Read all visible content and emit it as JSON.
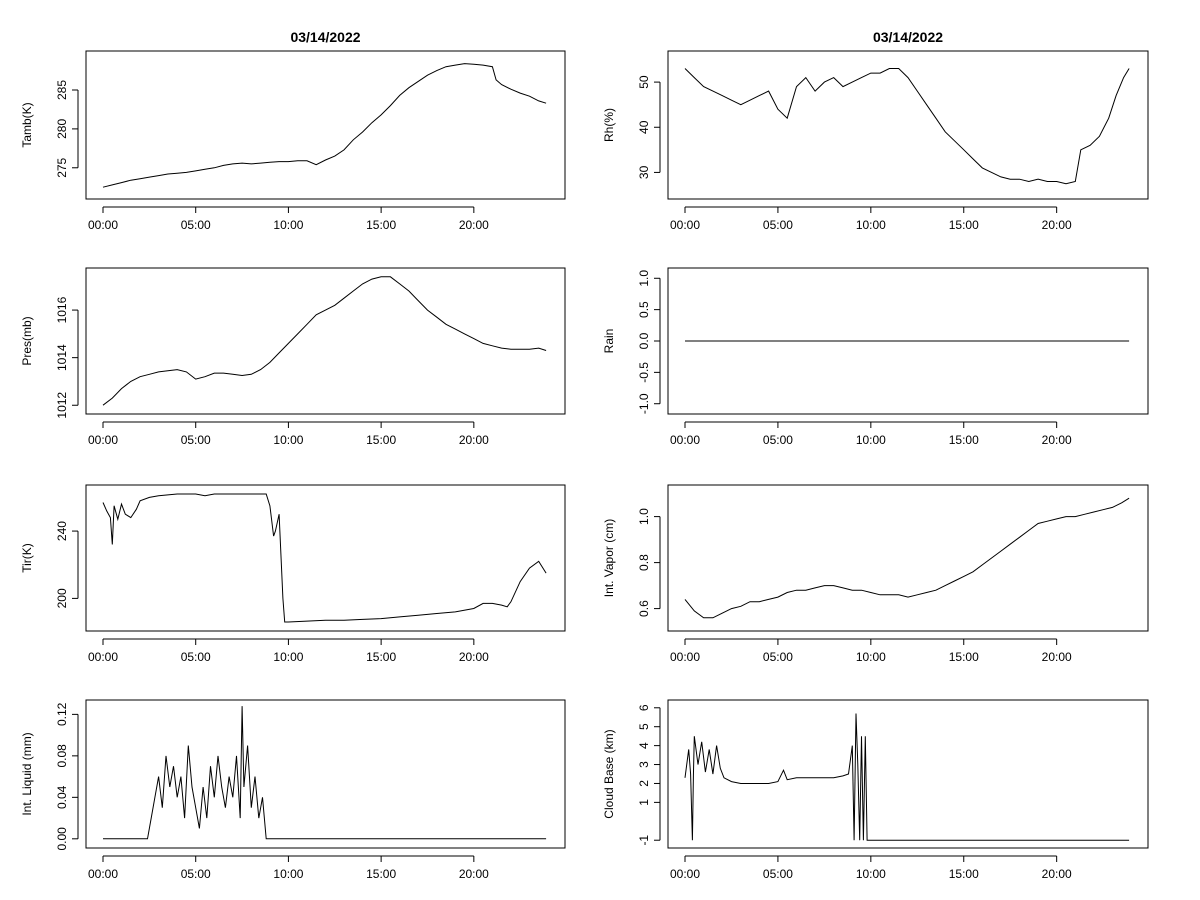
{
  "chart_data": [
    {
      "type": "line",
      "title": "03/14/2022",
      "xlabel": "",
      "ylabel": "Tamb(K)",
      "xlim": [
        0,
        24
      ],
      "ylim": [
        271.5,
        289.5
      ],
      "x_ticks": [
        "00:00",
        "05:00",
        "10:00",
        "15:00",
        "20:00"
      ],
      "y_ticks": [
        "275",
        "280",
        "285"
      ],
      "series": [
        {
          "x": [
            0,
            0.5,
            1,
            1.5,
            2,
            2.5,
            3,
            3.5,
            4,
            4.5,
            5,
            5.5,
            6,
            6.5,
            7,
            7.5,
            8,
            8.5,
            9,
            9.5,
            10,
            10.5,
            11,
            11.5,
            12,
            12.5,
            13,
            13.5,
            14,
            14.5,
            15,
            15.5,
            16,
            16.5,
            17,
            17.5,
            18,
            18.5,
            19,
            19.5,
            20,
            20.5,
            21,
            21.2,
            21.5,
            22,
            22.5,
            23,
            23.5,
            23.9
          ],
          "values": [
            272.5,
            272.8,
            273.1,
            273.4,
            273.6,
            273.8,
            274.0,
            274.2,
            274.3,
            274.4,
            274.6,
            274.8,
            275.0,
            275.3,
            275.5,
            275.6,
            275.5,
            275.6,
            275.7,
            275.8,
            275.8,
            275.9,
            275.9,
            275.4,
            276.0,
            276.5,
            277.3,
            278.6,
            279.6,
            280.8,
            281.8,
            283.0,
            284.3,
            285.3,
            286.1,
            286.9,
            287.5,
            288.0,
            288.2,
            288.4,
            288.3,
            288.2,
            288.0,
            286.3,
            285.7,
            285.1,
            284.6,
            284.2,
            283.6,
            283.3
          ]
        }
      ]
    },
    {
      "type": "line",
      "title": "03/14/2022",
      "xlabel": "",
      "ylabel": "Rh(%)",
      "xlim": [
        0,
        24
      ],
      "ylim": [
        25,
        56
      ],
      "x_ticks": [
        "00:00",
        "05:00",
        "10:00",
        "15:00",
        "20:00"
      ],
      "y_ticks": [
        "30",
        "40",
        "50"
      ],
      "series": [
        {
          "x": [
            0,
            0.5,
            1,
            1.5,
            2,
            2.5,
            3,
            3.5,
            4,
            4.5,
            5,
            5.5,
            6,
            6.5,
            7,
            7.5,
            8,
            8.5,
            9,
            9.5,
            10,
            10.5,
            11,
            11.5,
            12,
            12.5,
            13,
            13.5,
            14,
            14.5,
            15,
            15.5,
            16,
            16.5,
            17,
            17.5,
            18,
            18.5,
            19,
            19.5,
            20,
            20.5,
            21,
            21.3,
            21.8,
            22.3,
            22.8,
            23.2,
            23.6,
            23.9
          ],
          "values": [
            53,
            51,
            49,
            48,
            47,
            46,
            45,
            46,
            47,
            48,
            44,
            42,
            49,
            51,
            48,
            50,
            51,
            49,
            50,
            51,
            52,
            52,
            53,
            53,
            51,
            48,
            45,
            42,
            39,
            37,
            35,
            33,
            31,
            30,
            29,
            28.5,
            28.5,
            28,
            28.5,
            28,
            28,
            27.5,
            28,
            35,
            36,
            38,
            42,
            47,
            51,
            53
          ]
        }
      ]
    },
    {
      "type": "line",
      "title": "",
      "xlabel": "",
      "ylabel": "Pres(mb)",
      "xlim": [
        0,
        24
      ],
      "ylim": [
        1011.8,
        1017.6
      ],
      "x_ticks": [
        "00:00",
        "05:00",
        "10:00",
        "15:00",
        "20:00"
      ],
      "y_ticks": [
        "1012",
        "1014",
        "1016"
      ],
      "series": [
        {
          "x": [
            0,
            0.5,
            1,
            1.5,
            2,
            2.5,
            3,
            3.5,
            4,
            4.5,
            5,
            5.5,
            6,
            6.5,
            7,
            7.5,
            8,
            8.5,
            9,
            9.5,
            10,
            10.5,
            11,
            11.5,
            12,
            12.5,
            13,
            13.5,
            14,
            14.5,
            15,
            15.5,
            16,
            16.5,
            17,
            17.5,
            18,
            18.5,
            19,
            19.5,
            20,
            20.5,
            21,
            21.5,
            22,
            22.5,
            23,
            23.5,
            23.9
          ],
          "values": [
            1012.0,
            1012.3,
            1012.7,
            1013.0,
            1013.2,
            1013.3,
            1013.4,
            1013.45,
            1013.5,
            1013.4,
            1013.1,
            1013.2,
            1013.35,
            1013.35,
            1013.3,
            1013.25,
            1013.3,
            1013.5,
            1013.8,
            1014.2,
            1014.6,
            1015.0,
            1015.4,
            1015.8,
            1016.0,
            1016.2,
            1016.5,
            1016.8,
            1017.1,
            1017.3,
            1017.4,
            1017.4,
            1017.1,
            1016.8,
            1016.4,
            1016.0,
            1015.7,
            1015.4,
            1015.2,
            1015.0,
            1014.8,
            1014.6,
            1014.5,
            1014.4,
            1014.35,
            1014.35,
            1014.35,
            1014.4,
            1014.3
          ]
        }
      ]
    },
    {
      "type": "line",
      "title": "",
      "xlabel": "",
      "ylabel": "Rain",
      "xlim": [
        0,
        24
      ],
      "ylim": [
        -1.1,
        1.1
      ],
      "x_ticks": [
        "00:00",
        "05:00",
        "10:00",
        "15:00",
        "20:00"
      ],
      "y_ticks": [
        "-1.0",
        "-0.5",
        "0.0",
        "0.5",
        "1.0"
      ],
      "series": [
        {
          "x": [
            0,
            23.9
          ],
          "values": [
            0,
            0
          ]
        }
      ]
    },
    {
      "type": "line",
      "title": "",
      "xlabel": "",
      "ylabel": "Tir(K)",
      "xlim": [
        0,
        24
      ],
      "ylim": [
        183,
        265
      ],
      "x_ticks": [
        "00:00",
        "05:00",
        "10:00",
        "15:00",
        "20:00"
      ],
      "y_ticks": [
        "200",
        "240"
      ],
      "series": [
        {
          "x": [
            0,
            0.2,
            0.4,
            0.5,
            0.6,
            0.8,
            1,
            1.2,
            1.5,
            1.8,
            2,
            2.5,
            3,
            3.5,
            4,
            4.5,
            5,
            5.5,
            6,
            7,
            8,
            8.5,
            8.8,
            9,
            9.2,
            9.3,
            9.5,
            9.7,
            9.8,
            10,
            11,
            12,
            13,
            14,
            15,
            16,
            17,
            18,
            19,
            20,
            20.5,
            21,
            21.5,
            21.8,
            22,
            22.5,
            23,
            23.5,
            23.9
          ],
          "values": [
            257,
            252,
            248,
            232,
            255,
            247,
            256,
            250,
            248,
            253,
            258,
            260,
            261,
            261.5,
            262,
            262,
            262,
            261,
            262,
            262,
            262,
            262,
            262,
            255,
            237,
            240,
            250,
            200,
            186,
            186,
            186.5,
            187,
            187,
            187.5,
            188,
            189,
            190,
            191,
            192,
            194,
            197,
            197,
            196,
            195,
            198,
            210,
            218,
            222,
            215
          ]
        }
      ]
    },
    {
      "type": "line",
      "title": "",
      "xlabel": "",
      "ylabel": "Int. Vapor (cm)",
      "xlim": [
        0,
        24
      ],
      "ylim": [
        0.52,
        1.12
      ],
      "x_ticks": [
        "00:00",
        "05:00",
        "10:00",
        "15:00",
        "20:00"
      ],
      "y_ticks": [
        "0.6",
        "0.8",
        "1.0"
      ],
      "series": [
        {
          "x": [
            0,
            0.5,
            1,
            1.5,
            2,
            2.5,
            3,
            3.5,
            4,
            4.5,
            5,
            5.5,
            6,
            6.5,
            7,
            7.5,
            8,
            8.5,
            9,
            9.5,
            10,
            10.5,
            11,
            11.5,
            12,
            12.5,
            13,
            13.5,
            14,
            14.5,
            15,
            15.5,
            16,
            16.5,
            17,
            17.5,
            18,
            18.5,
            19,
            19.5,
            20,
            20.5,
            21,
            21.5,
            22,
            22.5,
            23,
            23.5,
            23.9
          ],
          "values": [
            0.64,
            0.59,
            0.56,
            0.56,
            0.58,
            0.6,
            0.61,
            0.63,
            0.63,
            0.64,
            0.65,
            0.67,
            0.68,
            0.68,
            0.69,
            0.7,
            0.7,
            0.69,
            0.68,
            0.68,
            0.67,
            0.66,
            0.66,
            0.66,
            0.65,
            0.66,
            0.67,
            0.68,
            0.7,
            0.72,
            0.74,
            0.76,
            0.79,
            0.82,
            0.85,
            0.88,
            0.91,
            0.94,
            0.97,
            0.98,
            0.99,
            1.0,
            1.0,
            1.01,
            1.02,
            1.03,
            1.04,
            1.06,
            1.08
          ]
        }
      ]
    },
    {
      "type": "line",
      "title": "",
      "xlabel": "",
      "ylabel": "Int. Liquid (mm)",
      "xlim": [
        0,
        24
      ],
      "ylim": [
        -0.005,
        0.13
      ],
      "x_ticks": [
        "00:00",
        "05:00",
        "10:00",
        "15:00",
        "20:00"
      ],
      "y_ticks": [
        "0.00",
        "0.04",
        "0.08",
        "0.12"
      ],
      "series": [
        {
          "x": [
            0,
            2.4,
            2.6,
            2.8,
            3.0,
            3.2,
            3.4,
            3.6,
            3.8,
            4.0,
            4.2,
            4.4,
            4.6,
            4.8,
            5.0,
            5.2,
            5.4,
            5.6,
            5.8,
            6.0,
            6.2,
            6.4,
            6.6,
            6.8,
            7.0,
            7.2,
            7.4,
            7.5,
            7.6,
            7.8,
            8.0,
            8.2,
            8.4,
            8.6,
            8.8,
            9.0,
            23.9
          ],
          "values": [
            0.0,
            0.0,
            0.02,
            0.04,
            0.06,
            0.03,
            0.08,
            0.05,
            0.07,
            0.04,
            0.06,
            0.02,
            0.09,
            0.05,
            0.03,
            0.01,
            0.05,
            0.02,
            0.07,
            0.04,
            0.08,
            0.05,
            0.03,
            0.06,
            0.04,
            0.08,
            0.02,
            0.128,
            0.05,
            0.09,
            0.03,
            0.06,
            0.02,
            0.04,
            0.0,
            0.0,
            0.0
          ]
        }
      ]
    },
    {
      "type": "line",
      "title": "",
      "xlabel": "",
      "ylabel": "Cloud Base (km)",
      "xlim": [
        0,
        24
      ],
      "ylim": [
        -1.2,
        6.2
      ],
      "x_ticks": [
        "00:00",
        "05:00",
        "10:00",
        "15:00",
        "20:00"
      ],
      "y_ticks": [
        "-1",
        "1",
        "2",
        "3",
        "4",
        "5",
        "6"
      ],
      "series": [
        {
          "x": [
            0,
            0.2,
            0.3,
            0.4,
            0.45,
            0.5,
            0.7,
            0.9,
            1.1,
            1.3,
            1.5,
            1.7,
            1.9,
            2.1,
            2.5,
            3,
            3.5,
            4,
            4.5,
            5,
            5.3,
            5.5,
            6,
            6.5,
            7,
            7.5,
            8,
            8.5,
            8.8,
            9.0,
            9.1,
            9.2,
            9.3,
            9.4,
            9.5,
            9.6,
            9.7,
            9.8,
            10,
            23.9
          ],
          "values": [
            2.3,
            3.8,
            2.5,
            -1,
            2.4,
            4.5,
            3.0,
            4.2,
            2.6,
            3.8,
            2.5,
            4.0,
            2.8,
            2.3,
            2.1,
            2.0,
            2.0,
            2.0,
            2.0,
            2.1,
            2.7,
            2.2,
            2.3,
            2.3,
            2.3,
            2.3,
            2.3,
            2.4,
            2.5,
            4.0,
            -1,
            5.7,
            3.0,
            -1,
            4.5,
            -1,
            4.5,
            -1,
            -1,
            -1
          ]
        }
      ]
    }
  ]
}
